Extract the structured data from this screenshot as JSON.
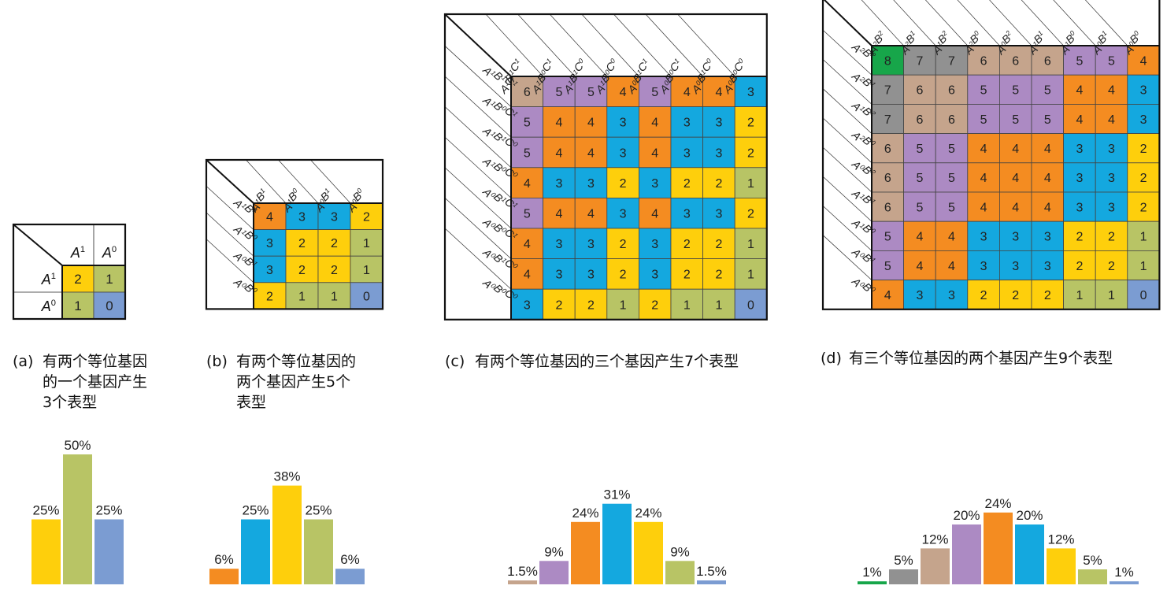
{
  "colors": {
    "0": "#7b9cd2",
    "1": "#b8c465",
    "2": "#fecf0c",
    "3": "#14a8df",
    "4": "#f48c21",
    "5": "#ac8ac3",
    "6": "#c5a48c",
    "7": "#919191",
    "8": "#17a64a"
  },
  "panels": [
    {
      "id": "a",
      "caption_label": "(a)",
      "caption_text": "有两个等位基因的一个基因产生3个表型",
      "header_style": "plain",
      "col_headers": [
        [
          "A",
          "1"
        ],
        [
          "A",
          "0"
        ]
      ],
      "row_headers": [
        [
          "A",
          "1"
        ],
        [
          "A",
          "0"
        ]
      ],
      "grid": [
        [
          2,
          1
        ],
        [
          1,
          0
        ]
      ],
      "bars": [
        {
          "label": "25%",
          "value": 25,
          "color": "2"
        },
        {
          "label": "50%",
          "value": 50,
          "color": "1"
        },
        {
          "label": "25%",
          "value": 25,
          "color": "0"
        }
      ]
    },
    {
      "id": "b",
      "caption_label": "(b)",
      "caption_text": "有两个等位基因的两个基因产生5个表型",
      "header_style": "diagonal",
      "col_headers": [
        [
          [
            "A",
            "1"
          ],
          [
            "B",
            "1"
          ]
        ],
        [
          [
            "A",
            "1"
          ],
          [
            "B",
            "0"
          ]
        ],
        [
          [
            "A",
            "0"
          ],
          [
            "B",
            "1"
          ]
        ],
        [
          [
            "A",
            "0"
          ],
          [
            "B",
            "0"
          ]
        ]
      ],
      "row_headers": [
        [
          [
            "A",
            "1"
          ],
          [
            "B",
            "1"
          ]
        ],
        [
          [
            "A",
            "1"
          ],
          [
            "B",
            "0"
          ]
        ],
        [
          [
            "A",
            "0"
          ],
          [
            "B",
            "1"
          ]
        ],
        [
          [
            "A",
            "0"
          ],
          [
            "B",
            "0"
          ]
        ]
      ],
      "grid": [
        [
          4,
          3,
          3,
          2
        ],
        [
          3,
          2,
          2,
          1
        ],
        [
          3,
          2,
          2,
          1
        ],
        [
          2,
          1,
          1,
          0
        ]
      ],
      "bars": [
        {
          "label": "6%",
          "value": 6,
          "color": "4"
        },
        {
          "label": "25%",
          "value": 25,
          "color": "3"
        },
        {
          "label": "38%",
          "value": 38,
          "color": "2"
        },
        {
          "label": "25%",
          "value": 25,
          "color": "1"
        },
        {
          "label": "6%",
          "value": 6,
          "color": "0"
        }
      ]
    },
    {
      "id": "c",
      "caption_label": "(c)",
      "caption_text": "有两个等位基因的三个基因产生7个表型",
      "header_style": "diagonal",
      "col_headers": [
        [
          [
            "A",
            "1"
          ],
          [
            "B",
            "1"
          ],
          [
            "C",
            "1"
          ]
        ],
        [
          [
            "A",
            "1"
          ],
          [
            "B",
            "0"
          ],
          [
            "C",
            "1"
          ]
        ],
        [
          [
            "A",
            "1"
          ],
          [
            "B",
            "1"
          ],
          [
            "C",
            "0"
          ]
        ],
        [
          [
            "A",
            "1"
          ],
          [
            "B",
            "0"
          ],
          [
            "C",
            "0"
          ]
        ],
        [
          [
            "A",
            "0"
          ],
          [
            "B",
            "1"
          ],
          [
            "C",
            "1"
          ]
        ],
        [
          [
            "A",
            "0"
          ],
          [
            "B",
            "0"
          ],
          [
            "C",
            "1"
          ]
        ],
        [
          [
            "A",
            "0"
          ],
          [
            "B",
            "1"
          ],
          [
            "C",
            "0"
          ]
        ],
        [
          [
            "A",
            "0"
          ],
          [
            "B",
            "0"
          ],
          [
            "C",
            "0"
          ]
        ]
      ],
      "row_headers": [
        [
          [
            "A",
            "1"
          ],
          [
            "B",
            "1"
          ],
          [
            "C",
            "1"
          ]
        ],
        [
          [
            "A",
            "1"
          ],
          [
            "B",
            "0"
          ],
          [
            "C",
            "1"
          ]
        ],
        [
          [
            "A",
            "1"
          ],
          [
            "B",
            "1"
          ],
          [
            "C",
            "0"
          ]
        ],
        [
          [
            "A",
            "1"
          ],
          [
            "B",
            "0"
          ],
          [
            "C",
            "0"
          ]
        ],
        [
          [
            "A",
            "0"
          ],
          [
            "B",
            "1"
          ],
          [
            "C",
            "1"
          ]
        ],
        [
          [
            "A",
            "0"
          ],
          [
            "B",
            "0"
          ],
          [
            "C",
            "1"
          ]
        ],
        [
          [
            "A",
            "0"
          ],
          [
            "B",
            "1"
          ],
          [
            "C",
            "0"
          ]
        ],
        [
          [
            "A",
            "0"
          ],
          [
            "B",
            "0"
          ],
          [
            "C",
            "0"
          ]
        ]
      ],
      "grid": [
        [
          6,
          5,
          5,
          4,
          5,
          4,
          4,
          3
        ],
        [
          5,
          4,
          4,
          3,
          4,
          3,
          3,
          2
        ],
        [
          5,
          4,
          4,
          3,
          4,
          3,
          3,
          2
        ],
        [
          4,
          3,
          3,
          2,
          3,
          2,
          2,
          1
        ],
        [
          5,
          4,
          4,
          3,
          4,
          3,
          3,
          2
        ],
        [
          4,
          3,
          3,
          2,
          3,
          2,
          2,
          1
        ],
        [
          4,
          3,
          3,
          2,
          3,
          2,
          2,
          1
        ],
        [
          3,
          2,
          2,
          1,
          2,
          1,
          1,
          0
        ]
      ],
      "bars": [
        {
          "label": "1.5%",
          "value": 1.5,
          "color": "6"
        },
        {
          "label": "9%",
          "value": 9,
          "color": "5"
        },
        {
          "label": "24%",
          "value": 24,
          "color": "4"
        },
        {
          "label": "31%",
          "value": 31,
          "color": "3"
        },
        {
          "label": "24%",
          "value": 24,
          "color": "2"
        },
        {
          "label": "9%",
          "value": 9,
          "color": "1"
        },
        {
          "label": "1.5%",
          "value": 1.5,
          "color": "0"
        }
      ]
    },
    {
      "id": "d",
      "caption_label": "(d)",
      "caption_text": "有三个等位基因的两个基因产生9个表型",
      "header_style": "diagonal",
      "col_headers": [
        [
          [
            "A",
            "2"
          ],
          [
            "B",
            "2"
          ]
        ],
        [
          [
            "A",
            "2"
          ],
          [
            "B",
            "1"
          ]
        ],
        [
          [
            "A",
            "1"
          ],
          [
            "B",
            "2"
          ]
        ],
        [
          [
            "A",
            "2"
          ],
          [
            "B",
            "0"
          ]
        ],
        [
          [
            "A",
            "0"
          ],
          [
            "B",
            "2"
          ]
        ],
        [
          [
            "A",
            "1"
          ],
          [
            "B",
            "1"
          ]
        ],
        [
          [
            "A",
            "1"
          ],
          [
            "B",
            "0"
          ]
        ],
        [
          [
            "A",
            "0"
          ],
          [
            "B",
            "1"
          ]
        ],
        [
          [
            "A",
            "0"
          ],
          [
            "B",
            "0"
          ]
        ]
      ],
      "row_headers": [
        [
          [
            "A",
            "2"
          ],
          [
            "B",
            "2"
          ]
        ],
        [
          [
            "A",
            "2"
          ],
          [
            "B",
            "1"
          ]
        ],
        [
          [
            "A",
            "1"
          ],
          [
            "B",
            "2"
          ]
        ],
        [
          [
            "A",
            "2"
          ],
          [
            "B",
            "0"
          ]
        ],
        [
          [
            "A",
            "0"
          ],
          [
            "B",
            "2"
          ]
        ],
        [
          [
            "A",
            "1"
          ],
          [
            "B",
            "1"
          ]
        ],
        [
          [
            "A",
            "1"
          ],
          [
            "B",
            "0"
          ]
        ],
        [
          [
            "A",
            "0"
          ],
          [
            "B",
            "1"
          ]
        ],
        [
          [
            "A",
            "0"
          ],
          [
            "B",
            "0"
          ]
        ]
      ],
      "grid": [
        [
          8,
          7,
          7,
          6,
          6,
          6,
          5,
          5,
          4
        ],
        [
          7,
          6,
          6,
          5,
          5,
          5,
          4,
          4,
          3
        ],
        [
          7,
          6,
          6,
          5,
          5,
          5,
          4,
          4,
          3
        ],
        [
          6,
          5,
          5,
          4,
          4,
          4,
          3,
          3,
          2
        ],
        [
          6,
          5,
          5,
          4,
          4,
          4,
          3,
          3,
          2
        ],
        [
          6,
          5,
          5,
          4,
          4,
          4,
          3,
          3,
          2
        ],
        [
          5,
          4,
          4,
          3,
          3,
          3,
          2,
          2,
          1
        ],
        [
          5,
          4,
          4,
          3,
          3,
          3,
          2,
          2,
          1
        ],
        [
          4,
          3,
          3,
          2,
          2,
          2,
          1,
          1,
          0
        ]
      ],
      "bars": [
        {
          "label": "1%",
          "value": 1,
          "color": "8"
        },
        {
          "label": "5%",
          "value": 5,
          "color": "7"
        },
        {
          "label": "12%",
          "value": 12,
          "color": "6"
        },
        {
          "label": "20%",
          "value": 20,
          "color": "5"
        },
        {
          "label": "24%",
          "value": 24,
          "color": "4"
        },
        {
          "label": "20%",
          "value": 20,
          "color": "3"
        },
        {
          "label": "12%",
          "value": 12,
          "color": "2"
        },
        {
          "label": "5%",
          "value": 5,
          "color": "1"
        },
        {
          "label": "1%",
          "value": 1,
          "color": "0"
        }
      ]
    }
  ]
}
